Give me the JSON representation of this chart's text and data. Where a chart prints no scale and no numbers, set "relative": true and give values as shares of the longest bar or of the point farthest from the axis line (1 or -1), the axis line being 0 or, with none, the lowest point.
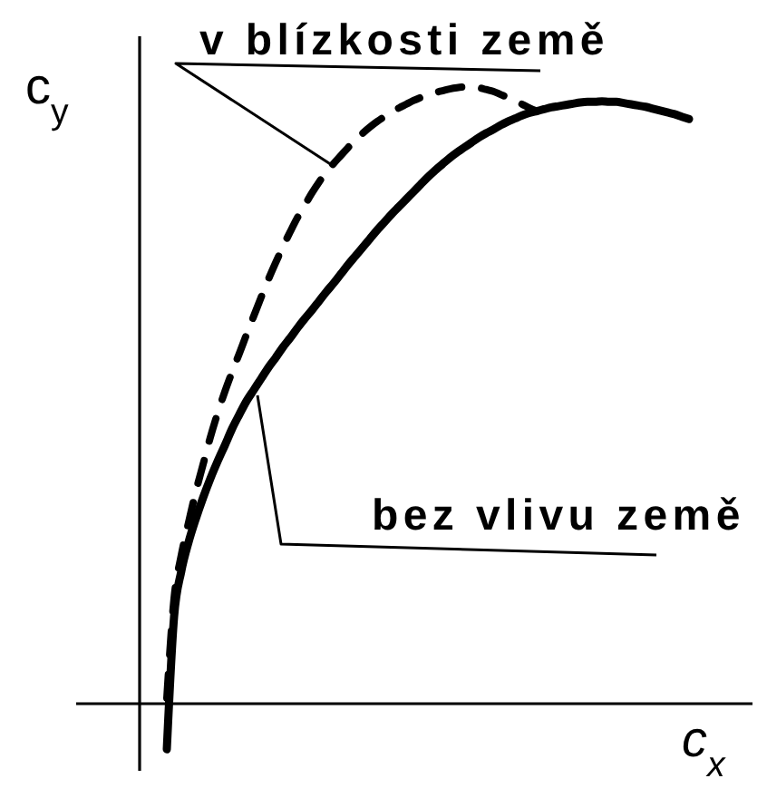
{
  "chart_data": {
    "type": "line",
    "relative": true,
    "xlabel": "c$_{x}$",
    "ylabel": "c$_{y}$",
    "annotations": [
      "v blízkosti země",
      "bez vlivu země"
    ],
    "categories": [
      null,
      null,
      null,
      null,
      null,
      null,
      null,
      null,
      null,
      null,
      null,
      null,
      null,
      null,
      null,
      null,
      null,
      null,
      null,
      null,
      null,
      null,
      null,
      null,
      null,
      null,
      null,
      null,
      null,
      null,
      null,
      null,
      null,
      null,
      null,
      null,
      null,
      null,
      null,
      null,
      null,
      null,
      null,
      null,
      null,
      null,
      null,
      null,
      null,
      null,
      null,
      null,
      null,
      null,
      null,
      null,
      null,
      null,
      null,
      null,
      null,
      null,
      null,
      null,
      null,
      null,
      null,
      null,
      null,
      null,
      null,
      null,
      null
    ],
    "series": [
      {
        "color": "#000000",
        "line_style": "dashed",
        "values": [
          0.009,
          0.171,
          0.241,
          0.294,
          0.344,
          0.388,
          0.432,
          0.471,
          0.506,
          0.538,
          0.568,
          0.599,
          0.629,
          0.659,
          0.688,
          0.715,
          0.741,
          0.765,
          0.788,
          0.808,
          0.828,
          0.846,
          0.862,
          0.876,
          0.889,
          0.902,
          0.914,
          0.925,
          0.935,
          0.944,
          0.952,
          0.959,
          0.966,
          0.972,
          0.978,
          0.983,
          0.987,
          0.991,
          0.994,
          0.997,
          0.999,
          1.0,
          1.0,
          0.999,
          0.996,
          0.993,
          0.988,
          0.983,
          0.977,
          0.972,
          0.966,
          0.961,
          null,
          null,
          null,
          null,
          null,
          null,
          null,
          null,
          null,
          null,
          null,
          null,
          null,
          null,
          null,
          null,
          null,
          null,
          null,
          null,
          null
        ]
      },
      {
        "color": "#000000",
        "line_style": "solid",
        "values": [
          -0.074,
          0.141,
          0.215,
          0.262,
          0.3,
          0.334,
          0.365,
          0.393,
          0.419,
          0.446,
          0.469,
          0.491,
          0.509,
          0.527,
          0.545,
          0.561,
          0.578,
          0.593,
          0.609,
          0.624,
          0.638,
          0.653,
          0.668,
          0.682,
          0.697,
          0.712,
          0.726,
          0.74,
          0.754,
          0.768,
          0.781,
          0.794,
          0.806,
          0.818,
          0.83,
          0.842,
          0.854,
          0.865,
          0.875,
          0.885,
          0.894,
          0.902,
          0.91,
          0.918,
          0.925,
          0.931,
          0.938,
          0.944,
          0.949,
          0.954,
          0.958,
          0.961,
          0.964,
          0.967,
          0.969,
          0.971,
          0.973,
          0.975,
          0.976,
          0.976,
          0.977,
          0.976,
          0.976,
          0.974,
          0.972,
          0.97,
          0.968,
          0.965,
          0.962,
          0.959,
          0.956,
          0.952,
          0.948
        ]
      }
    ]
  }
}
